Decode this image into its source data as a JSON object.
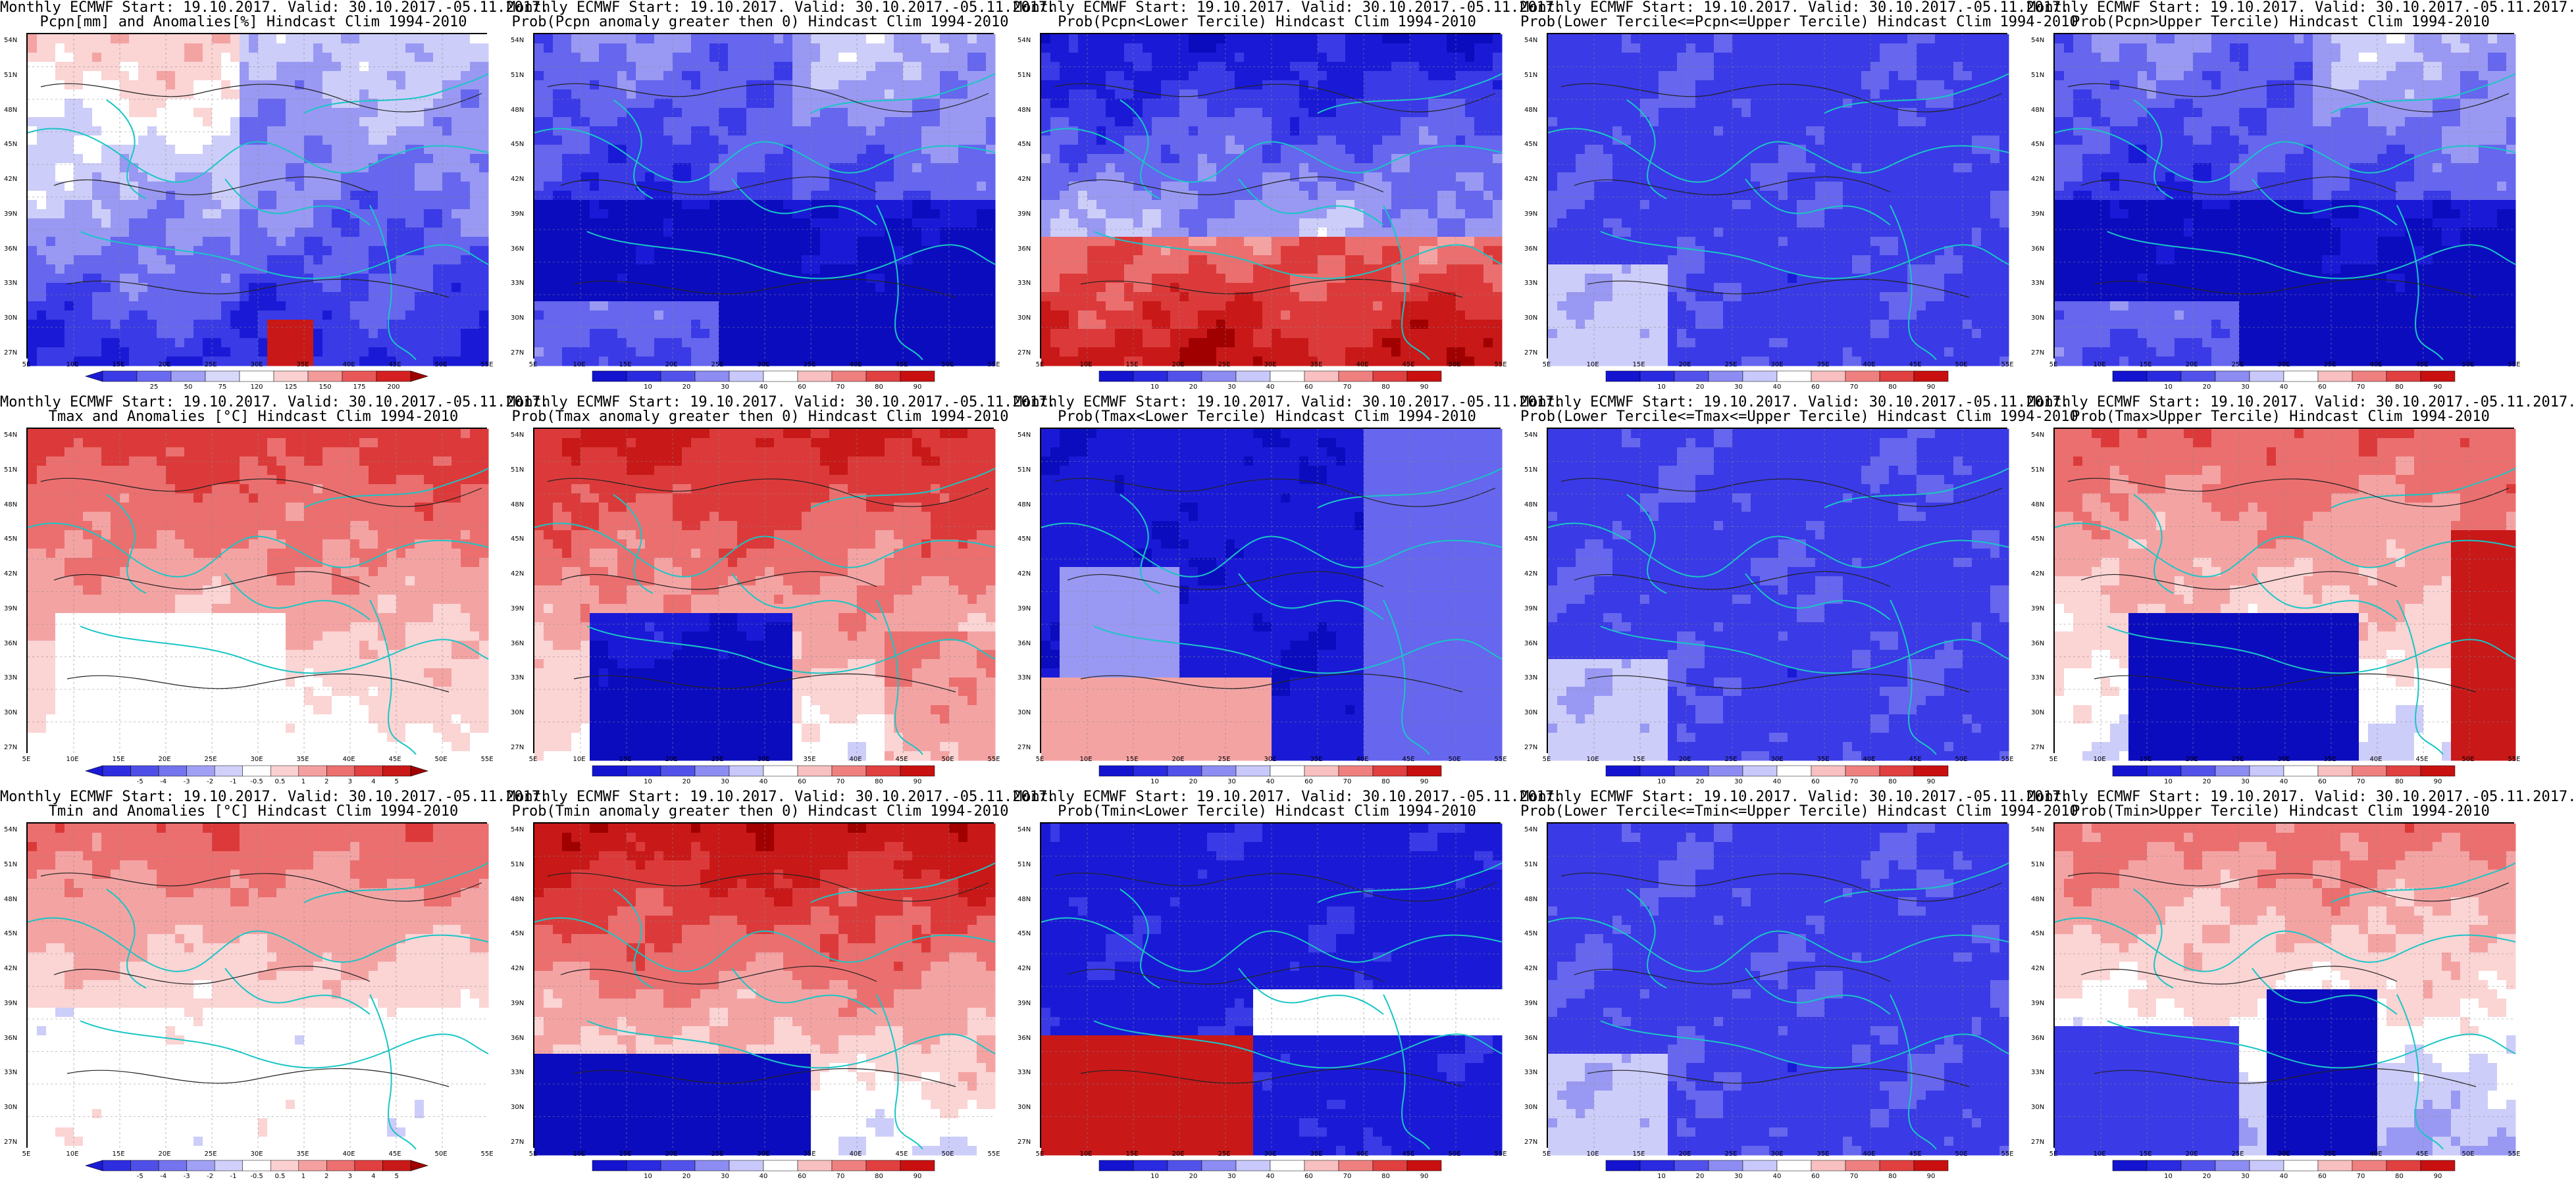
{
  "panels": [
    {
      "row": 0,
      "col": 0,
      "title1": "Monthly ECMWF Start: 19.10.2017. Valid: 30.10.2017.-05.11.2017.",
      "title2": "Pcpn[mm] and Anomalies[%] Hindcast Clim 1994-2010",
      "scheme": "pcpn_anom",
      "colorbar": {
        "labels": [
          "25",
          "50",
          "75",
          "120",
          "125",
          "150",
          "175",
          "200"
        ],
        "arrows": true,
        "colors": [
          "#1a1ad6",
          "#3a3ae6",
          "#6a6af0",
          "#a0a0f5",
          "#d8d8fb",
          "#ffffff",
          "#fbd0d0",
          "#f39a9a",
          "#e85858",
          "#d42020",
          "#a00000"
        ]
      }
    },
    {
      "row": 0,
      "col": 1,
      "title1": "Monthly ECMWF Start: 19.10.2017. Valid: 30.10.2017.-05.11.2017.",
      "title2": "Prob(Pcpn anomaly greater then 0) Hindcast Clim 1994-2010",
      "scheme": "prob_blue",
      "colorbar": {
        "labels": [
          "10",
          "20",
          "30",
          "40",
          "60",
          "70",
          "80",
          "90"
        ],
        "arrows": false,
        "colors": [
          "#1414d0",
          "#2a2ae0",
          "#5252ea",
          "#8c8cf2",
          "#c8c8fa",
          "#ffffff",
          "#f8c0c0",
          "#ef8080",
          "#e04040",
          "#c81010"
        ]
      }
    },
    {
      "row": 0,
      "col": 2,
      "title1": "Monthly ECMWF Start: 19.10.2017. Valid: 30.10.2017.-05.11.2017.",
      "title2": "Prob(Pcpn<Lower Tercile) Hindcast Clim 1994-2010",
      "scheme": "lower_pcpn",
      "colorbar": {
        "labels": [
          "10",
          "20",
          "30",
          "40",
          "60",
          "70",
          "80",
          "90"
        ],
        "arrows": false,
        "colors": [
          "#1414d0",
          "#2a2ae0",
          "#5252ea",
          "#8c8cf2",
          "#c8c8fa",
          "#ffffff",
          "#f8c0c0",
          "#ef8080",
          "#e04040",
          "#c81010"
        ]
      }
    },
    {
      "row": 0,
      "col": 3,
      "title1": "Monthly ECMWF Start: 19.10.2017. Valid: 30.10.2017.-05.11.2017.",
      "title2": "Prob(Lower Tercile<=Pcpn<=Upper Tercile) Hindcast Clim 1994-2010",
      "scheme": "mid_blue",
      "colorbar": {
        "labels": [
          "10",
          "20",
          "30",
          "40",
          "60",
          "70",
          "80",
          "90"
        ],
        "arrows": false,
        "colors": [
          "#1414d0",
          "#2a2ae0",
          "#5252ea",
          "#8c8cf2",
          "#c8c8fa",
          "#ffffff",
          "#f8c0c0",
          "#ef8080",
          "#e04040",
          "#c81010"
        ]
      }
    },
    {
      "row": 0,
      "col": 4,
      "title1": "Monthly ECMWF Start: 19.10.2017. Valid: 30.10.2017.-05.11.2017.",
      "title2": "Prob(Pcpn>Upper Tercile) Hindcast Clim 1994-2010",
      "scheme": "prob_blue",
      "colorbar": {
        "labels": [
          "10",
          "20",
          "30",
          "40",
          "60",
          "70",
          "80",
          "90"
        ],
        "arrows": false,
        "colors": [
          "#1414d0",
          "#2a2ae0",
          "#5252ea",
          "#8c8cf2",
          "#c8c8fa",
          "#ffffff",
          "#f8c0c0",
          "#ef8080",
          "#e04040",
          "#c81010"
        ]
      }
    },
    {
      "row": 1,
      "col": 0,
      "title1": "Monthly ECMWF Start: 19.10.2017. Valid: 30.10.2017.-05.11.2017.",
      "title2": "Tmax and Anomalies [°C] Hindcast Clim 1994-2010",
      "scheme": "t_anom_warm",
      "colorbar": {
        "labels": [
          "-5",
          "-4",
          "-3",
          "-2",
          "-1",
          "-0.5",
          "0.5",
          "1",
          "2",
          "3",
          "4",
          "5"
        ],
        "arrows": true,
        "colors": [
          "#1a1ad6",
          "#2e2ee0",
          "#4f4fe8",
          "#7474ee",
          "#a0a0f4",
          "#d0d0fa",
          "#ffffff",
          "#fbd0d0",
          "#f5a0a0",
          "#ec7070",
          "#e04040",
          "#c81818",
          "#a00000"
        ]
      }
    },
    {
      "row": 1,
      "col": 1,
      "title1": "Monthly ECMWF Start: 19.10.2017. Valid: 30.10.2017.-05.11.2017.",
      "title2": "Prob(Tmax anomaly greater then 0) Hindcast Clim 1994-2010",
      "scheme": "prob_red",
      "colorbar": {
        "labels": [
          "10",
          "20",
          "30",
          "40",
          "60",
          "70",
          "80",
          "90"
        ],
        "arrows": false,
        "colors": [
          "#1414d0",
          "#2a2ae0",
          "#5252ea",
          "#8c8cf2",
          "#c8c8fa",
          "#ffffff",
          "#f8c0c0",
          "#ef8080",
          "#e04040",
          "#c81010"
        ]
      }
    },
    {
      "row": 1,
      "col": 2,
      "title1": "Monthly ECMWF Start: 19.10.2017. Valid: 30.10.2017.-05.11.2017.",
      "title2": "Prob(Tmax<Lower Tercile) Hindcast Clim 1994-2010",
      "scheme": "lower_t",
      "colorbar": {
        "labels": [
          "10",
          "20",
          "30",
          "40",
          "60",
          "70",
          "80",
          "90"
        ],
        "arrows": false,
        "colors": [
          "#1414d0",
          "#2a2ae0",
          "#5252ea",
          "#8c8cf2",
          "#c8c8fa",
          "#ffffff",
          "#f8c0c0",
          "#ef8080",
          "#e04040",
          "#c81010"
        ]
      }
    },
    {
      "row": 1,
      "col": 3,
      "title1": "Monthly ECMWF Start: 19.10.2017. Valid: 30.10.2017.-05.11.2017.",
      "title2": "Prob(Lower Tercile<=Tmax<=Upper Tercile) Hindcast Clim 1994-2010",
      "scheme": "mid_blue",
      "colorbar": {
        "labels": [
          "10",
          "20",
          "30",
          "40",
          "60",
          "70",
          "80",
          "90"
        ],
        "arrows": false,
        "colors": [
          "#1414d0",
          "#2a2ae0",
          "#5252ea",
          "#8c8cf2",
          "#c8c8fa",
          "#ffffff",
          "#f8c0c0",
          "#ef8080",
          "#e04040",
          "#c81010"
        ]
      }
    },
    {
      "row": 1,
      "col": 4,
      "title1": "Monthly ECMWF Start: 19.10.2017. Valid: 30.10.2017.-05.11.2017.",
      "title2": "Prob(Tmax>Upper Tercile) Hindcast Clim 1994-2010",
      "scheme": "upper_t",
      "colorbar": {
        "labels": [
          "10",
          "20",
          "30",
          "40",
          "60",
          "70",
          "80",
          "90"
        ],
        "arrows": false,
        "colors": [
          "#1414d0",
          "#2a2ae0",
          "#5252ea",
          "#8c8cf2",
          "#c8c8fa",
          "#ffffff",
          "#f8c0c0",
          "#ef8080",
          "#e04040",
          "#c81010"
        ]
      }
    },
    {
      "row": 2,
      "col": 0,
      "title1": "Monthly ECMWF Start: 19.10.2017. Valid: 30.10.2017.-05.11.2017.",
      "title2": "Tmin and Anomalies [°C] Hindcast Clim 1994-2010",
      "scheme": "t_anom_mix",
      "colorbar": {
        "labels": [
          "-5",
          "-4",
          "-3",
          "-2",
          "-1",
          "-0.5",
          "0.5",
          "1",
          "2",
          "3",
          "4",
          "5"
        ],
        "arrows": true,
        "colors": [
          "#1a1ad6",
          "#2e2ee0",
          "#4f4fe8",
          "#7474ee",
          "#a0a0f4",
          "#d0d0fa",
          "#ffffff",
          "#fbd0d0",
          "#f5a0a0",
          "#ec7070",
          "#e04040",
          "#c81818",
          "#a00000"
        ]
      }
    },
    {
      "row": 2,
      "col": 1,
      "title1": "Monthly ECMWF Start: 19.10.2017. Valid: 30.10.2017.-05.11.2017.",
      "title2": "Prob(Tmin anomaly greater then 0) Hindcast Clim 1994-2010",
      "scheme": "prob_red_s",
      "colorbar": {
        "labels": [
          "10",
          "20",
          "30",
          "40",
          "60",
          "70",
          "80",
          "90"
        ],
        "arrows": false,
        "colors": [
          "#1414d0",
          "#2a2ae0",
          "#5252ea",
          "#8c8cf2",
          "#c8c8fa",
          "#ffffff",
          "#f8c0c0",
          "#ef8080",
          "#e04040",
          "#c81010"
        ]
      }
    },
    {
      "row": 2,
      "col": 2,
      "title1": "Monthly ECMWF Start: 19.10.2017. Valid: 30.10.2017.-05.11.2017.",
      "title2": "Prob(Tmin<Lower Tercile) Hindcast Clim 1994-2010",
      "scheme": "lower_tmin",
      "colorbar": {
        "labels": [
          "10",
          "20",
          "30",
          "40",
          "60",
          "70",
          "80",
          "90"
        ],
        "arrows": false,
        "colors": [
          "#1414d0",
          "#2a2ae0",
          "#5252ea",
          "#8c8cf2",
          "#c8c8fa",
          "#ffffff",
          "#f8c0c0",
          "#ef8080",
          "#e04040",
          "#c81010"
        ]
      }
    },
    {
      "row": 2,
      "col": 3,
      "title1": "Monthly ECMWF Start: 19.10.2017. Valid: 30.10.2017.-05.11.2017.",
      "title2": "Prob(Lower Tercile<=Tmin<=Upper Tercile) Hindcast Clim 1994-2010",
      "scheme": "mid_blue",
      "colorbar": {
        "labels": [
          "10",
          "20",
          "30",
          "40",
          "60",
          "70",
          "80",
          "90"
        ],
        "arrows": false,
        "colors": [
          "#1414d0",
          "#2a2ae0",
          "#5252ea",
          "#8c8cf2",
          "#c8c8fa",
          "#ffffff",
          "#f8c0c0",
          "#ef8080",
          "#e04040",
          "#c81010"
        ]
      }
    },
    {
      "row": 2,
      "col": 4,
      "title1": "Monthly ECMWF Start: 19.10.2017. Valid: 30.10.2017.-05.11.2017.",
      "title2": "Prob(Tmin>Upper Tercile) Hindcast Clim 1994-2010",
      "scheme": "upper_tmin",
      "colorbar": {
        "labels": [
          "10",
          "20",
          "30",
          "40",
          "60",
          "70",
          "80",
          "90"
        ],
        "arrows": false,
        "colors": [
          "#1414d0",
          "#2a2ae0",
          "#5252ea",
          "#8c8cf2",
          "#c8c8fa",
          "#ffffff",
          "#f8c0c0",
          "#ef8080",
          "#e04040",
          "#c81010"
        ]
      }
    }
  ],
  "lat_labels": [
    "54N",
    "51N",
    "48N",
    "45N",
    "42N",
    "39N",
    "36N",
    "33N",
    "30N",
    "27N"
  ],
  "lon_labels": [
    "5E",
    "10E",
    "15E",
    "20E",
    "25E",
    "30E",
    "35E",
    "40E",
    "45E",
    "50E",
    "55E"
  ]
}
